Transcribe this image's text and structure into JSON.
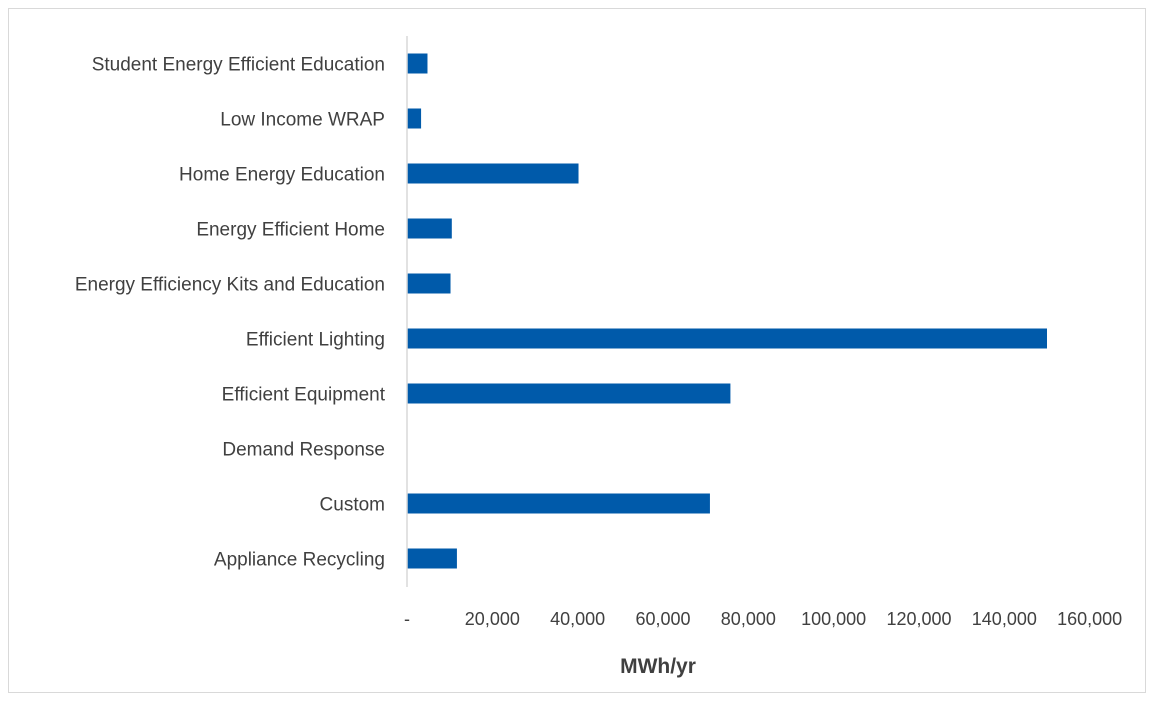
{
  "chart_data": {
    "type": "bar",
    "orientation": "horizontal",
    "title": "",
    "xlabel": "MWh/yr",
    "ylabel": "",
    "categories": [
      "Student Energy Efficient Education",
      "Low Income WRAP",
      "Home Energy Education",
      "Energy Efficient Home",
      "Energy Efficiency Kits and Education",
      "Efficient Lighting",
      "Efficient Equipment",
      "Demand Response",
      "Custom",
      "Appliance Recycling"
    ],
    "values": [
      4800,
      3300,
      40200,
      10500,
      10200,
      150000,
      75800,
      0,
      71000,
      11700
    ],
    "xlim": [
      0,
      160000
    ],
    "x_ticks": [
      0,
      20000,
      40000,
      60000,
      80000,
      100000,
      120000,
      140000,
      160000
    ],
    "x_tick_labels": [
      "-",
      "20,000",
      "40,000",
      "60,000",
      "80,000",
      "100,000",
      "120,000",
      "140,000",
      "160,000"
    ],
    "grid": false,
    "legend": "none",
    "bar_color": "#005aaa",
    "axis_color": "#d9d9d9"
  }
}
